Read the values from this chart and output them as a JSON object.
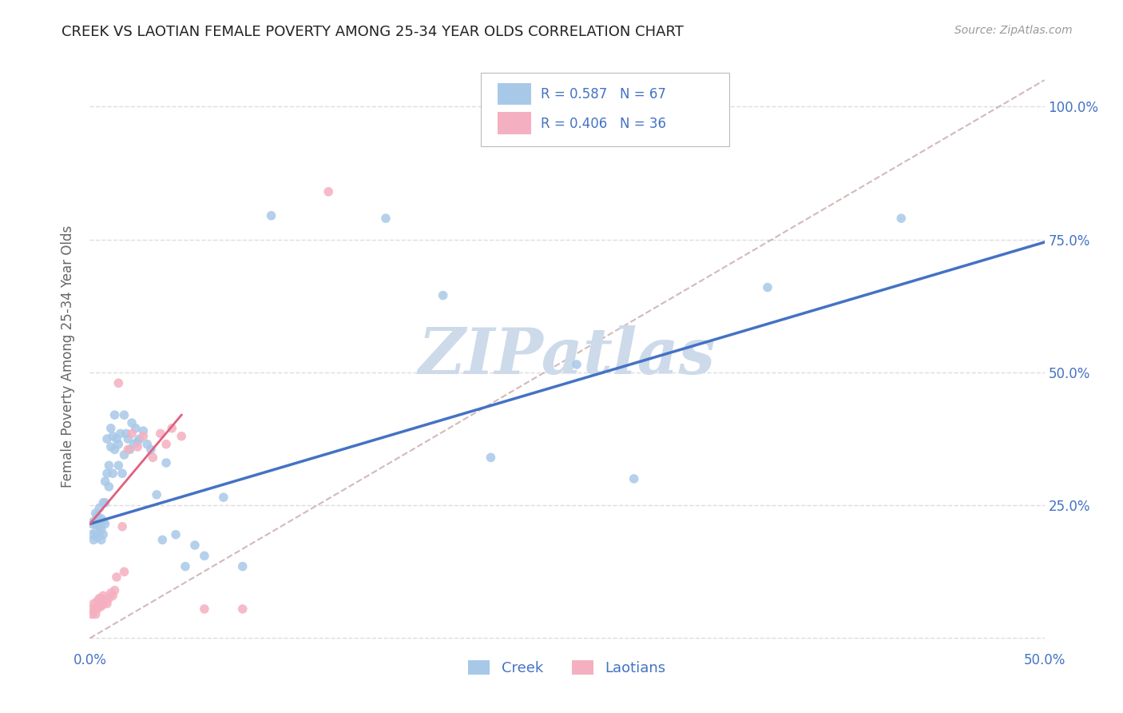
{
  "title": "CREEK VS LAOTIAN FEMALE POVERTY AMONG 25-34 YEAR OLDS CORRELATION CHART",
  "source": "Source: ZipAtlas.com",
  "ylabel": "Female Poverty Among 25-34 Year Olds",
  "xlim": [
    0.0,
    0.5
  ],
  "ylim": [
    -0.02,
    1.08
  ],
  "yticks": [
    0.0,
    0.25,
    0.5,
    0.75,
    1.0
  ],
  "yticklabels": [
    "",
    "25.0%",
    "50.0%",
    "75.0%",
    "100.0%"
  ],
  "xtick_left": 0.0,
  "xtick_right": 0.5,
  "creek_color": "#a8c8e8",
  "creek_line_color": "#4472c4",
  "laotian_color": "#f4b0c0",
  "laotian_line_color": "#e06080",
  "diagonal_color": "#c8a8a8",
  "watermark_color": "#cddaea",
  "legend_creek_R": "0.587",
  "legend_creek_N": "67",
  "legend_laotian_R": "0.406",
  "legend_laotian_N": "36",
  "creek_x": [
    0.001,
    0.001,
    0.002,
    0.002,
    0.003,
    0.003,
    0.003,
    0.004,
    0.004,
    0.004,
    0.005,
    0.005,
    0.005,
    0.006,
    0.006,
    0.006,
    0.007,
    0.007,
    0.007,
    0.008,
    0.008,
    0.008,
    0.009,
    0.009,
    0.01,
    0.01,
    0.011,
    0.011,
    0.012,
    0.012,
    0.013,
    0.013,
    0.014,
    0.015,
    0.015,
    0.016,
    0.017,
    0.018,
    0.018,
    0.019,
    0.02,
    0.021,
    0.022,
    0.023,
    0.024,
    0.025,
    0.026,
    0.028,
    0.03,
    0.032,
    0.035,
    0.038,
    0.04,
    0.045,
    0.05,
    0.055,
    0.06,
    0.07,
    0.08,
    0.095,
    0.155,
    0.185,
    0.21,
    0.255,
    0.285,
    0.355,
    0.425
  ],
  "creek_y": [
    0.215,
    0.195,
    0.22,
    0.185,
    0.215,
    0.2,
    0.235,
    0.19,
    0.215,
    0.23,
    0.195,
    0.21,
    0.245,
    0.185,
    0.205,
    0.225,
    0.195,
    0.22,
    0.255,
    0.215,
    0.295,
    0.255,
    0.31,
    0.375,
    0.325,
    0.285,
    0.36,
    0.395,
    0.38,
    0.31,
    0.42,
    0.355,
    0.375,
    0.325,
    0.365,
    0.385,
    0.31,
    0.345,
    0.42,
    0.385,
    0.375,
    0.355,
    0.405,
    0.365,
    0.395,
    0.37,
    0.375,
    0.39,
    0.365,
    0.355,
    0.27,
    0.185,
    0.33,
    0.195,
    0.135,
    0.175,
    0.155,
    0.265,
    0.135,
    0.795,
    0.79,
    0.645,
    0.34,
    0.515,
    0.3,
    0.66,
    0.79
  ],
  "laotian_x": [
    0.001,
    0.001,
    0.002,
    0.002,
    0.003,
    0.003,
    0.004,
    0.004,
    0.005,
    0.005,
    0.006,
    0.006,
    0.007,
    0.007,
    0.008,
    0.009,
    0.01,
    0.011,
    0.012,
    0.013,
    0.014,
    0.015,
    0.017,
    0.018,
    0.02,
    0.022,
    0.025,
    0.028,
    0.033,
    0.037,
    0.04,
    0.043,
    0.048,
    0.06,
    0.08,
    0.125
  ],
  "laotian_y": [
    0.055,
    0.045,
    0.065,
    0.05,
    0.06,
    0.045,
    0.055,
    0.07,
    0.06,
    0.075,
    0.06,
    0.075,
    0.065,
    0.08,
    0.07,
    0.065,
    0.075,
    0.085,
    0.08,
    0.09,
    0.115,
    0.48,
    0.21,
    0.125,
    0.355,
    0.385,
    0.36,
    0.38,
    0.34,
    0.385,
    0.365,
    0.395,
    0.38,
    0.055,
    0.055,
    0.84
  ],
  "creek_trend_x": [
    0.0,
    0.5
  ],
  "creek_trend_y": [
    0.215,
    0.745
  ],
  "laotian_trend_x": [
    0.0,
    0.048
  ],
  "laotian_trend_y": [
    0.215,
    0.42
  ],
  "background_color": "#ffffff",
  "grid_color": "#dddddd",
  "title_color": "#222222",
  "axis_label_color": "#666666",
  "right_tick_color": "#4472c4",
  "legend_text_color": "#4472c4"
}
